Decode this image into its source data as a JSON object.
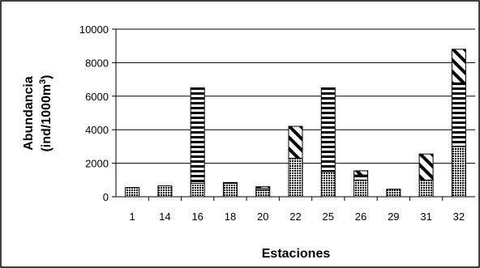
{
  "chart_data": {
    "type": "bar",
    "stacked": true,
    "categories": [
      "1",
      "14",
      "16",
      "18",
      "20",
      "22",
      "25",
      "26",
      "29",
      "31",
      "32"
    ],
    "series": [
      {
        "pattern": "dots",
        "values": [
          550,
          650,
          800,
          800,
          400,
          2300,
          1500,
          1000,
          450,
          1000,
          3000
        ]
      },
      {
        "pattern": "horizontal-stripes",
        "values": [
          0,
          0,
          5700,
          50,
          100,
          0,
          5000,
          300,
          0,
          0,
          3800
        ]
      },
      {
        "pattern": "diagonal-stripes",
        "values": [
          0,
          0,
          0,
          0,
          100,
          1900,
          0,
          250,
          0,
          1550,
          2000
        ]
      }
    ],
    "xlabel": "Estaciones",
    "ylabel_line1": "Abundancia",
    "ylabel_line2_prefix": "(ind/1000m",
    "ylabel_line2_sup": "3",
    "ylabel_line2_suffix": ")",
    "ylim": [
      0,
      10000
    ],
    "yticks": [
      "0",
      "2000",
      "4000",
      "6000",
      "8000",
      "10000"
    ],
    "grid": true,
    "legend": "none"
  }
}
